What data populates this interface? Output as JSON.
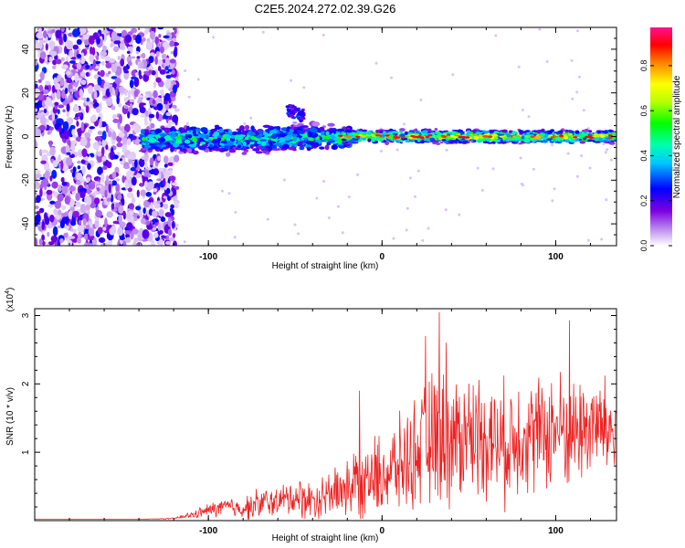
{
  "figure": {
    "title": "C2E5.2024.272.02.39.G26"
  },
  "chart_data": [
    {
      "type": "heatmap",
      "title": "C2E5.2024.272.02.39.G26",
      "xlabel": "Height of straight line (km)",
      "ylabel": "Frequency (Hz)",
      "xlim": [
        -200,
        135
      ],
      "ylim": [
        -50,
        50
      ],
      "xticks": [
        -100,
        0,
        100
      ],
      "yticks": [
        -40,
        -20,
        0,
        20,
        40
      ],
      "colorbar": {
        "label": "Normalized spectral amplitude",
        "ticks": [
          "0.0",
          "0.2",
          "0.4",
          "0.6",
          "0.8"
        ],
        "tick_values": [
          0.0,
          0.2,
          0.4,
          0.6,
          0.8
        ],
        "range": [
          0,
          0.97
        ],
        "colormap": "rainbow (white → violet → blue → cyan → green → yellow → orange → red → magenta)"
      },
      "features": [
        {
          "region": "x < -120 km",
          "description": "broadband noise across all frequencies, amplitude 0.05–0.3"
        },
        {
          "region": "-135 to -20 km",
          "description": "band centered near 0 Hz, width ~±5 Hz, amplitude 0.2–0.6"
        },
        {
          "region": "-55 to -45 km",
          "description": "secondary patch near +12 Hz"
        },
        {
          "region": "-20 to 135 km",
          "description": "narrow line at ~0 Hz, amplitude 0.6–0.9"
        }
      ]
    },
    {
      "type": "line",
      "xlabel": "Height of straight line (km)",
      "ylabel": "SNR (10 * v/v)",
      "scale_label": "(x10",
      "scale_exp": "4",
      "xlim": [
        -200,
        135
      ],
      "ylim": [
        0,
        3.1
      ],
      "xticks": [
        -100,
        0,
        100
      ],
      "yticks": [
        1,
        2,
        3
      ],
      "color": "#ee2222",
      "series": [
        {
          "x": [
            -200,
            -180,
            -160,
            -140,
            -120,
            -110,
            -100,
            -90,
            -80,
            -70,
            -60,
            -50,
            -40,
            -30,
            -20,
            -10,
            0,
            10,
            20,
            30,
            40,
            50,
            60,
            70,
            80,
            90,
            100,
            110,
            120,
            135
          ],
          "y": [
            0.02,
            0.02,
            0.02,
            0.02,
            0.03,
            0.08,
            0.15,
            0.2,
            0.18,
            0.25,
            0.28,
            0.35,
            0.3,
            0.4,
            0.5,
            0.6,
            0.65,
            0.8,
            1.0,
            1.2,
            1.15,
            1.3,
            1.25,
            1.1,
            1.3,
            1.25,
            1.35,
            1.3,
            1.4,
            1.3
          ],
          "spread": [
            0.0,
            0.0,
            0.0,
            0.0,
            0.01,
            0.05,
            0.1,
            0.15,
            0.15,
            0.25,
            0.2,
            0.3,
            0.3,
            0.35,
            0.5,
            0.6,
            0.6,
            0.7,
            0.8,
            1.0,
            1.0,
            0.9,
            0.9,
            0.9,
            0.9,
            0.85,
            0.9,
            0.8,
            0.85,
            0.7
          ]
        }
      ],
      "peaks": [
        {
          "x": 33,
          "y": 3.05
        },
        {
          "x": 108,
          "y": 2.93
        },
        {
          "x": 25,
          "y": 2.7
        },
        {
          "x": 37,
          "y": 2.6
        },
        {
          "x": -13,
          "y": 1.9
        }
      ]
    }
  ]
}
